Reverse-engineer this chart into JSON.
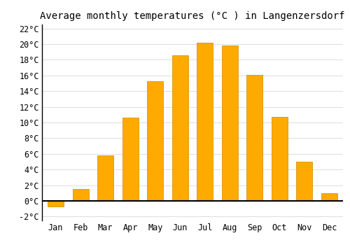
{
  "months": [
    "Jan",
    "Feb",
    "Mar",
    "Apr",
    "May",
    "Jun",
    "Jul",
    "Aug",
    "Sep",
    "Oct",
    "Nov",
    "Dec"
  ],
  "values": [
    -0.7,
    1.5,
    5.8,
    10.6,
    15.3,
    18.6,
    20.2,
    19.8,
    16.1,
    10.7,
    5.0,
    1.0
  ],
  "bar_color": "#FFAA00",
  "bar_edge_color": "#CC8800",
  "title": "Average monthly temperatures (°C ) in Langenzersdorf",
  "ylim": [
    -2.5,
    22.5
  ],
  "yticks": [
    -2,
    0,
    2,
    4,
    6,
    8,
    10,
    12,
    14,
    16,
    18,
    20,
    22
  ],
  "ytick_labels": [
    "-2°C",
    "0°C",
    "2°C",
    "4°C",
    "6°C",
    "8°C",
    "10°C",
    "12°C",
    "14°C",
    "16°C",
    "18°C",
    "20°C",
    "22°C"
  ],
  "background_color": "#FFFFFF",
  "plot_bg_color": "#FFFFFF",
  "title_fontsize": 10,
  "tick_fontsize": 8.5,
  "grid_color": "#DDDDDD"
}
